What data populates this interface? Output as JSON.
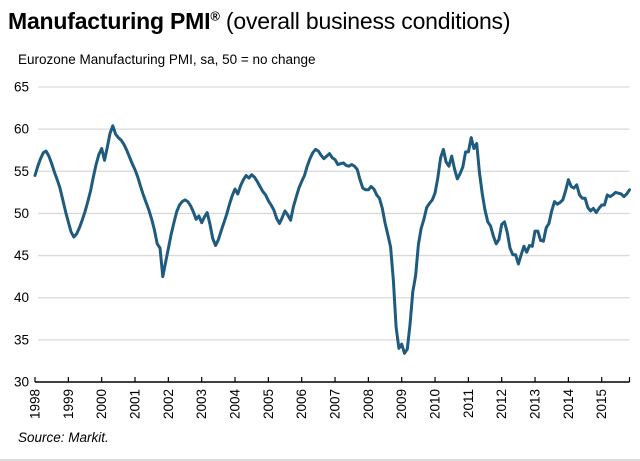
{
  "header": {
    "title_bold": "Manufacturing PMI",
    "title_sup": "®",
    "title_rest": " (overall business conditions)",
    "subtitle": "Eurozone Manufacturing PMI, sa, 50 = no change"
  },
  "footer": {
    "source": "Source: Markit."
  },
  "chart_data": {
    "type": "line",
    "title": "Manufacturing PMI® (overall business conditions)",
    "subtitle": "Eurozone Manufacturing PMI, sa, 50 = no change",
    "source": "Source: Markit.",
    "xlabel": "",
    "ylabel": "",
    "ylim": [
      30,
      65
    ],
    "yticks": [
      30,
      35,
      40,
      45,
      50,
      55,
      60,
      65
    ],
    "xtick_years": [
      "1998",
      "1999",
      "2000",
      "2001",
      "2002",
      "2003",
      "2004",
      "2005",
      "2006",
      "2007",
      "2008",
      "2009",
      "2010",
      "2011",
      "2012",
      "2013",
      "2014",
      "2015"
    ],
    "frequency": "monthly",
    "x_start": "1998-01",
    "x_end": "2015-11",
    "grid": "horizontal",
    "legend": "none",
    "line_color": "#1E5B7E",
    "grid_color": "#D9D9D9",
    "axis_color": "#000000",
    "series": [
      {
        "name": "Eurozone Manufacturing PMI (sa)",
        "values": [
          54.5,
          55.6,
          56.5,
          57.2,
          57.4,
          56.8,
          55.9,
          54.9,
          54.0,
          53.0,
          51.6,
          50.2,
          49.0,
          47.8,
          47.2,
          47.6,
          48.3,
          49.2,
          50.2,
          51.4,
          52.7,
          54.3,
          55.8,
          57.0,
          57.7,
          56.3,
          57.8,
          59.5,
          60.4,
          59.4,
          59.0,
          58.7,
          58.2,
          57.5,
          56.7,
          55.9,
          55.2,
          54.3,
          53.2,
          52.2,
          51.3,
          50.4,
          49.3,
          48.0,
          46.4,
          45.9,
          42.5,
          44.2,
          45.8,
          47.5,
          48.9,
          50.2,
          51.0,
          51.4,
          51.6,
          51.4,
          50.9,
          50.2,
          49.3,
          49.7,
          48.9,
          49.6,
          50.1,
          48.7,
          47.0,
          46.2,
          46.9,
          47.9,
          48.9,
          49.9,
          51.1,
          52.1,
          52.9,
          52.3,
          53.3,
          54.0,
          54.5,
          54.2,
          54.6,
          54.3,
          53.8,
          53.2,
          52.6,
          52.2,
          51.5,
          51.0,
          50.4,
          49.4,
          48.8,
          49.5,
          50.3,
          49.8,
          49.2,
          50.8,
          51.9,
          53.0,
          53.8,
          54.5,
          55.6,
          56.5,
          57.2,
          57.6,
          57.4,
          56.9,
          56.5,
          56.8,
          57.1,
          56.6,
          56.4,
          55.8,
          55.9,
          56.0,
          55.7,
          55.6,
          55.8,
          55.6,
          55.2,
          54.0,
          53.0,
          52.8,
          52.8,
          53.2,
          52.9,
          52.2,
          51.8,
          50.6,
          48.9,
          47.5,
          46.0,
          42.0,
          36.5,
          34.0,
          34.5,
          33.4,
          33.9,
          36.8,
          40.7,
          42.6,
          46.3,
          48.2,
          49.3,
          50.7,
          51.2,
          51.6,
          52.4,
          54.2,
          56.6,
          57.6,
          56.1,
          55.6,
          56.8,
          55.3,
          54.1,
          54.7,
          55.5,
          57.3,
          57.3,
          59.0,
          57.7,
          58.3,
          54.8,
          52.3,
          50.4,
          49.0,
          48.5,
          47.3,
          46.4,
          46.9,
          48.7,
          49.0,
          47.7,
          45.9,
          45.1,
          45.1,
          44.0,
          45.1,
          46.1,
          45.4,
          46.2,
          46.1,
          47.9,
          47.9,
          46.8,
          46.7,
          48.3,
          48.8,
          50.3,
          51.4,
          51.1,
          51.3,
          51.6,
          52.7,
          54.0,
          53.2,
          53.0,
          53.4,
          52.2,
          51.8,
          51.8,
          50.7,
          50.3,
          50.6,
          50.1,
          50.6,
          51.0,
          51.0,
          52.2,
          52.0,
          52.2,
          52.5,
          52.4,
          52.3,
          52.0,
          52.3,
          52.8
        ]
      }
    ]
  }
}
